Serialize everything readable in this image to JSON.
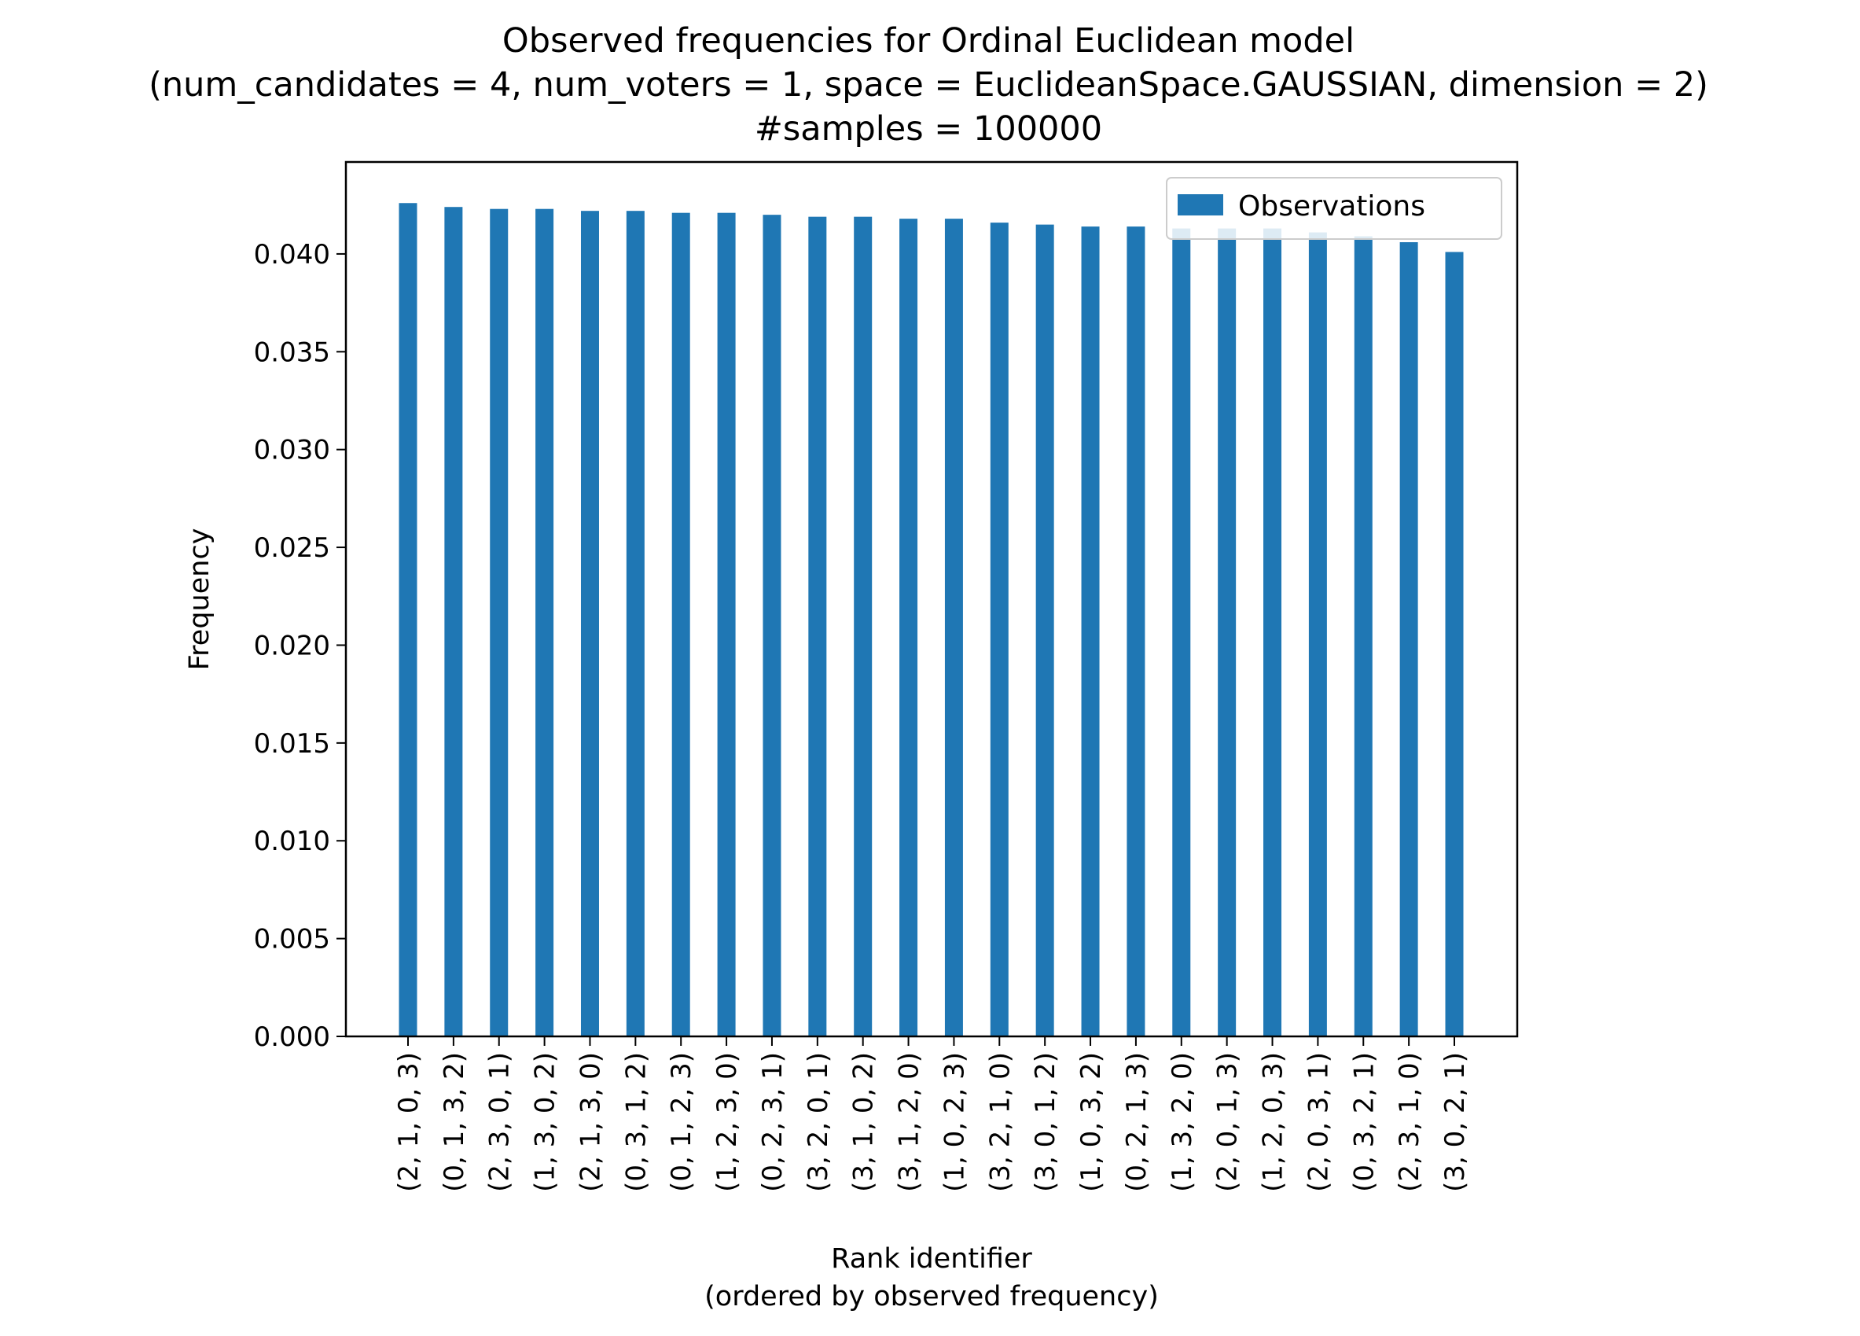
{
  "chart_data": {
    "type": "bar",
    "title": [
      "Observed frequencies for Ordinal Euclidean model",
      "(num_candidates = 4, num_voters = 1, space = EuclideanSpace.GAUSSIAN, dimension = 2)",
      "#samples = 100000"
    ],
    "xlabel": [
      "Rank identifier",
      "(ordered by observed frequency)"
    ],
    "ylabel": "Frequency",
    "ylim": [
      0,
      0.0447
    ],
    "yticks": [
      "0.000",
      "0.005",
      "0.010",
      "0.015",
      "0.020",
      "0.025",
      "0.030",
      "0.035",
      "0.040"
    ],
    "categories": [
      "(2, 1, 0, 3)",
      "(0, 1, 3, 2)",
      "(2, 3, 0, 1)",
      "(1, 3, 0, 2)",
      "(2, 1, 3, 0)",
      "(0, 3, 1, 2)",
      "(0, 1, 2, 3)",
      "(1, 2, 3, 0)",
      "(0, 2, 3, 1)",
      "(3, 2, 0, 1)",
      "(3, 1, 0, 2)",
      "(3, 1, 2, 0)",
      "(1, 0, 2, 3)",
      "(3, 2, 1, 0)",
      "(3, 0, 1, 2)",
      "(1, 0, 3, 2)",
      "(0, 2, 1, 3)",
      "(1, 3, 2, 0)",
      "(2, 0, 1, 3)",
      "(1, 2, 0, 3)",
      "(2, 0, 3, 1)",
      "(0, 3, 2, 1)",
      "(2, 3, 1, 0)",
      "(3, 0, 2, 1)"
    ],
    "series": [
      {
        "name": "Observations",
        "color": "#1f77b4",
        "values": [
          0.0426,
          0.0424,
          0.0423,
          0.0423,
          0.0422,
          0.0422,
          0.0421,
          0.0421,
          0.042,
          0.0419,
          0.0419,
          0.0418,
          0.0418,
          0.0416,
          0.0415,
          0.0414,
          0.0414,
          0.0413,
          0.0413,
          0.0413,
          0.0411,
          0.0409,
          0.0406,
          0.0401
        ]
      }
    ],
    "legend": "top-right",
    "grid": false
  }
}
